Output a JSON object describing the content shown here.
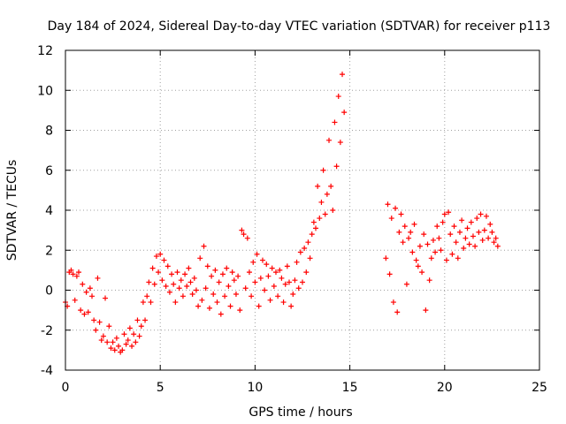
{
  "chart_data": {
    "type": "scatter",
    "title": "Day 184 of 2024, Sidereal Day-to-day VTEC variation (SDTVAR) for receiver p113",
    "xlabel": "GPS time / hours",
    "ylabel": "SDTVAR / TECUs",
    "xlim": [
      0,
      25
    ],
    "ylim": [
      -4,
      12
    ],
    "xticks": [
      0,
      5,
      10,
      15,
      20,
      25
    ],
    "yticks": [
      -4,
      -2,
      0,
      2,
      4,
      6,
      8,
      10,
      12
    ],
    "xtick_labels": [
      "0",
      "5",
      "10",
      "15",
      "20",
      "25"
    ],
    "ytick_labels": [
      "-4",
      "-2",
      "0",
      "2",
      "4",
      "6",
      "8",
      "10",
      "12"
    ],
    "grid": true,
    "marker": "+",
    "series": [
      {
        "name": "SDTVAR",
        "color": "#ff0000",
        "x": [
          0.0,
          0.1,
          0.2,
          0.3,
          0.4,
          0.5,
          0.6,
          0.7,
          0.8,
          0.9,
          1.0,
          1.1,
          1.2,
          1.3,
          1.4,
          1.5,
          1.6,
          1.7,
          1.8,
          1.9,
          2.0,
          2.1,
          2.2,
          2.3,
          2.4,
          2.5,
          2.6,
          2.7,
          2.8,
          2.9,
          3.0,
          3.1,
          3.2,
          3.3,
          3.4,
          3.5,
          3.6,
          3.7,
          3.8,
          3.9,
          4.0,
          4.1,
          4.2,
          4.3,
          4.4,
          4.5,
          4.6,
          4.7,
          4.8,
          4.9,
          5.0,
          5.1,
          5.2,
          5.3,
          5.4,
          5.5,
          5.6,
          5.7,
          5.8,
          5.9,
          6.0,
          6.1,
          6.2,
          6.3,
          6.4,
          6.5,
          6.6,
          6.7,
          6.8,
          6.9,
          7.0,
          7.1,
          7.2,
          7.3,
          7.4,
          7.5,
          7.6,
          7.7,
          7.8,
          7.9,
          8.0,
          8.1,
          8.2,
          8.3,
          8.4,
          8.5,
          8.6,
          8.7,
          8.8,
          8.9,
          9.0,
          9.1,
          9.2,
          9.3,
          9.4,
          9.5,
          9.6,
          9.7,
          9.8,
          9.9,
          10.0,
          10.1,
          10.2,
          10.3,
          10.4,
          10.5,
          10.6,
          10.7,
          10.8,
          10.9,
          11.0,
          11.1,
          11.2,
          11.3,
          11.4,
          11.5,
          11.6,
          11.7,
          11.8,
          11.9,
          12.0,
          12.1,
          12.2,
          12.3,
          12.4,
          12.5,
          12.6,
          12.7,
          12.8,
          12.9,
          13.0,
          13.1,
          13.2,
          13.3,
          13.4,
          13.5,
          13.6,
          13.7,
          13.8,
          13.9,
          14.0,
          14.1,
          14.2,
          14.3,
          14.4,
          14.5,
          14.6,
          14.7,
          16.9,
          17.0,
          17.1,
          17.2,
          17.3,
          17.4,
          17.5,
          17.6,
          17.7,
          17.8,
          17.9,
          18.0,
          18.1,
          18.2,
          18.3,
          18.4,
          18.5,
          18.6,
          18.7,
          18.8,
          18.9,
          19.0,
          19.1,
          19.2,
          19.3,
          19.4,
          19.5,
          19.6,
          19.7,
          19.8,
          19.9,
          20.0,
          20.1,
          20.2,
          20.3,
          20.4,
          20.5,
          20.6,
          20.7,
          20.8,
          20.9,
          21.0,
          21.1,
          21.2,
          21.3,
          21.4,
          21.5,
          21.6,
          21.7,
          21.8,
          21.9,
          22.0,
          22.1,
          22.2,
          22.3,
          22.4,
          22.5,
          22.6,
          22.7,
          22.8
        ],
        "y": [
          -0.6,
          -0.8,
          0.9,
          1.0,
          0.8,
          -0.5,
          0.7,
          0.9,
          -1.0,
          0.3,
          -1.2,
          -0.1,
          -1.1,
          0.1,
          -0.3,
          -1.5,
          -2.0,
          0.6,
          -1.6,
          -2.5,
          -2.3,
          -0.4,
          -2.6,
          -1.8,
          -2.9,
          -2.6,
          -3.0,
          -2.4,
          -2.8,
          -3.1,
          -3.0,
          -2.2,
          -2.7,
          -2.5,
          -1.9,
          -2.8,
          -2.2,
          -2.6,
          -1.5,
          -2.3,
          -1.8,
          -0.6,
          -1.5,
          -0.3,
          0.4,
          -0.6,
          1.1,
          0.3,
          1.7,
          0.9,
          1.8,
          0.5,
          1.5,
          0.2,
          1.2,
          -0.1,
          0.8,
          0.3,
          -0.6,
          0.9,
          0.1,
          0.5,
          -0.3,
          0.8,
          0.2,
          1.1,
          0.4,
          -0.2,
          0.6,
          0.0,
          -0.8,
          1.6,
          -0.5,
          2.2,
          0.1,
          1.2,
          -0.9,
          0.7,
          -0.2,
          1.0,
          -0.6,
          0.4,
          -1.2,
          0.8,
          -0.3,
          1.1,
          0.2,
          -0.8,
          0.9,
          0.5,
          -0.2,
          0.7,
          -1.0,
          3.0,
          2.8,
          0.1,
          2.6,
          0.9,
          -0.3,
          1.4,
          0.4,
          1.8,
          -0.8,
          0.6,
          1.5,
          0.0,
          1.3,
          0.7,
          -0.5,
          1.1,
          0.2,
          0.9,
          -0.3,
          1.0,
          0.6,
          -0.6,
          0.3,
          1.2,
          0.4,
          -0.8,
          -0.2,
          0.5,
          1.4,
          0.1,
          1.9,
          0.4,
          2.1,
          0.9,
          2.4,
          1.6,
          2.8,
          3.4,
          3.1,
          5.2,
          3.6,
          4.4,
          6.0,
          3.8,
          4.8,
          7.5,
          5.2,
          4.0,
          8.4,
          6.2,
          9.7,
          7.4,
          10.8,
          8.9,
          1.6,
          4.3,
          0.8,
          3.6,
          -0.6,
          4.1,
          -1.1,
          2.9,
          3.8,
          2.4,
          3.2,
          0.3,
          2.6,
          2.9,
          1.9,
          3.3,
          1.5,
          1.2,
          2.2,
          0.9,
          2.8,
          -1.0,
          2.3,
          0.5,
          1.6,
          2.5,
          1.9,
          3.2,
          2.6,
          2.0,
          3.4,
          3.8,
          1.5,
          3.9,
          2.8,
          1.8,
          3.2,
          2.4,
          1.6,
          2.9,
          3.5,
          2.1,
          2.6,
          3.1,
          2.3,
          3.4,
          2.7,
          2.2,
          3.6,
          2.9,
          3.8,
          2.5,
          3.0,
          3.7,
          2.6,
          3.3,
          2.9,
          2.4,
          2.6,
          2.2
        ]
      }
    ]
  }
}
